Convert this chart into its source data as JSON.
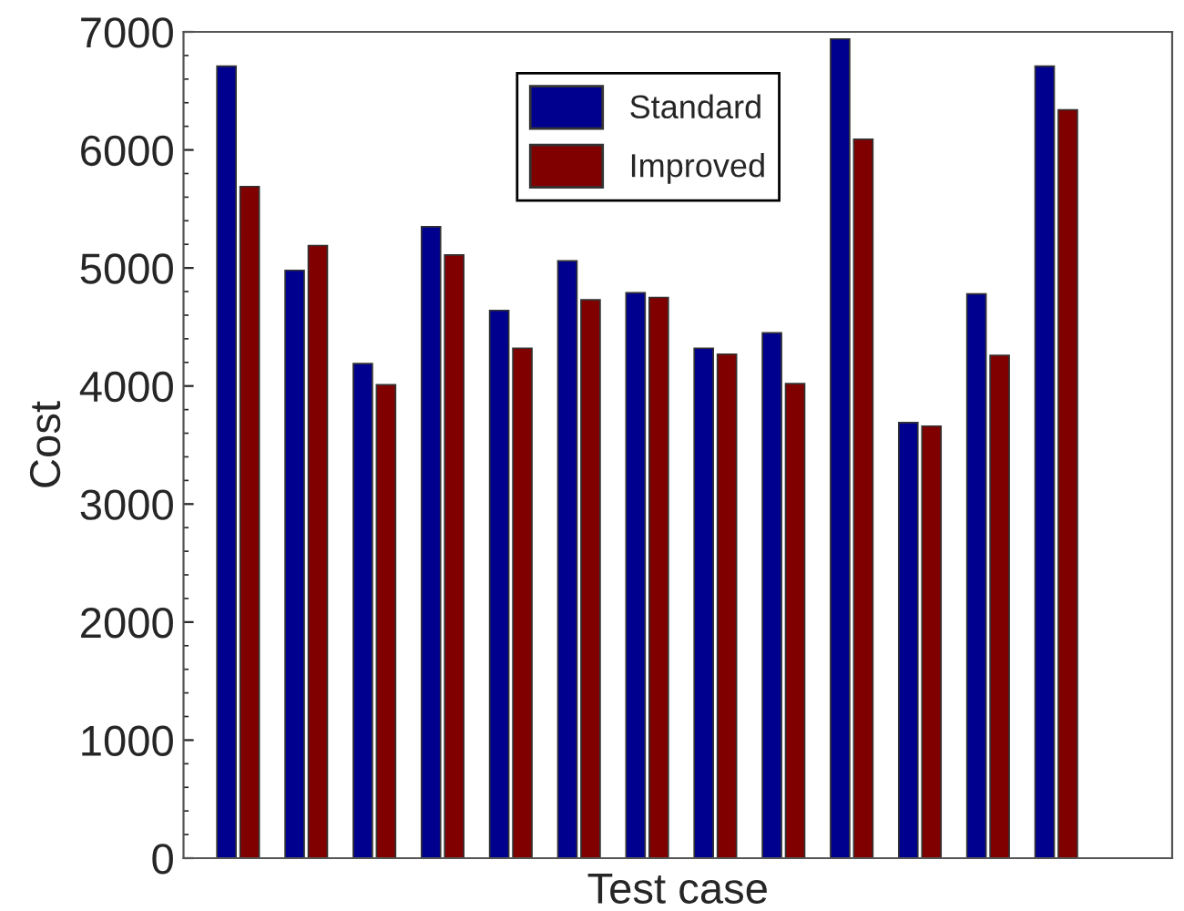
{
  "chart_data": {
    "type": "bar",
    "xlabel": "Test case",
    "ylabel": "Cost",
    "categories": [
      null,
      null,
      null,
      null,
      null,
      null,
      null,
      null,
      null,
      null,
      null,
      null,
      null
    ],
    "series": [
      {
        "name": "Standard",
        "color": "#00008f",
        "values": [
          6710,
          4980,
          4190,
          5350,
          4640,
          5060,
          4790,
          4320,
          4450,
          6940,
          3690,
          4780,
          6710
        ]
      },
      {
        "name": "Improved",
        "color": "#800000",
        "values": [
          5690,
          5190,
          4010,
          5110,
          4320,
          4730,
          4750,
          4270,
          4020,
          6090,
          3660,
          4260,
          6340
        ]
      }
    ],
    "ylim": [
      0,
      7000
    ],
    "yticks": [
      0,
      1000,
      2000,
      3000,
      4000,
      5000,
      6000,
      7000
    ],
    "grid": false,
    "legend": "top"
  }
}
